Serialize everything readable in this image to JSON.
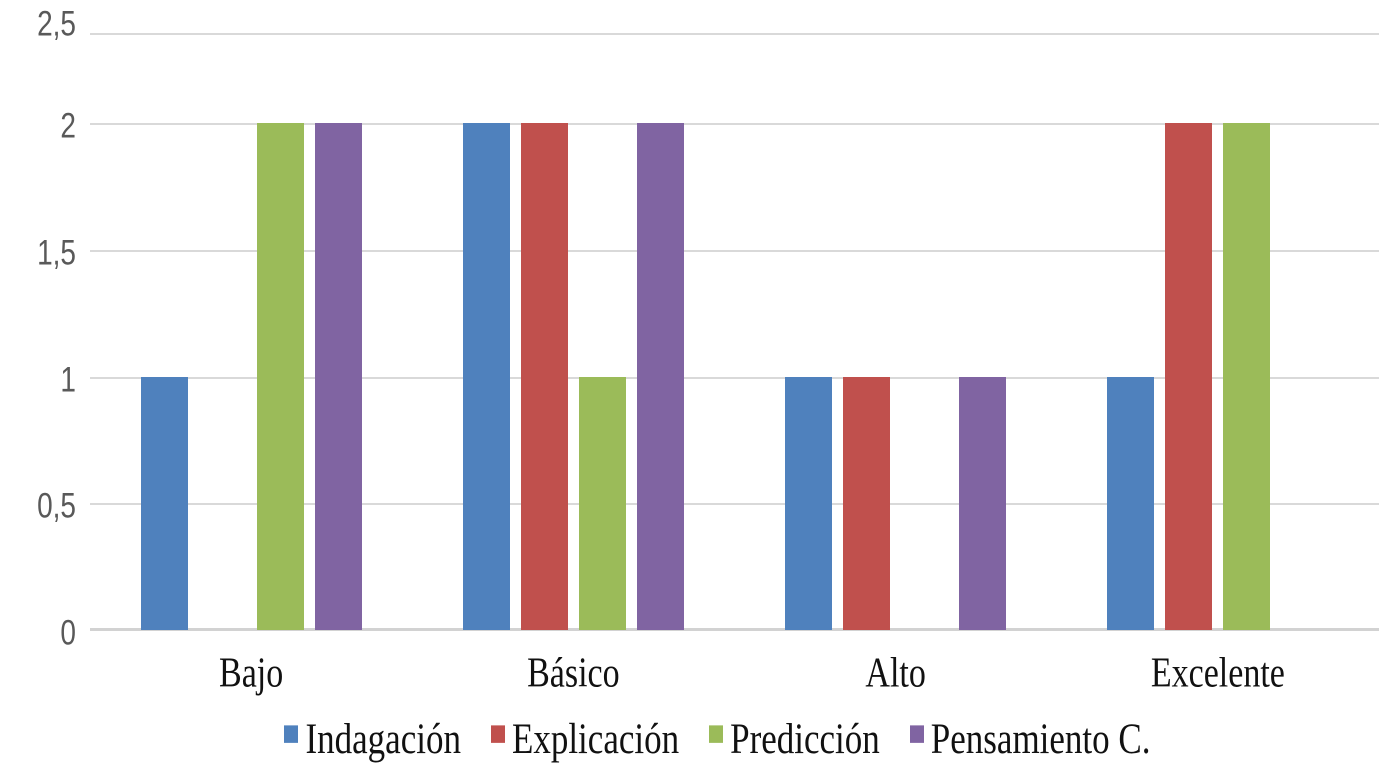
{
  "chart_data": {
    "type": "bar",
    "title": "",
    "categories": [
      "Bajo",
      "Básico",
      "Alto",
      "Excelente"
    ],
    "series": [
      {
        "name": "Indagación",
        "color": "#4F81BD",
        "values": [
          1,
          2,
          1,
          1
        ]
      },
      {
        "name": "Explicación",
        "color": "#C0504D",
        "values": [
          0,
          2,
          1,
          2
        ]
      },
      {
        "name": "Predicción",
        "color": "#9BBB59",
        "values": [
          2,
          1,
          0,
          2
        ]
      },
      {
        "name": "Pensamiento C.",
        "color": "#8064A2",
        "values": [
          2,
          2,
          1,
          0
        ]
      }
    ],
    "y_axis": {
      "min": 0,
      "max": 2.5,
      "decimal_separator": ",",
      "ticks": [
        {
          "value": 0,
          "label": "0"
        },
        {
          "value": 0.5,
          "label": "0,5"
        },
        {
          "value": 1,
          "label": "1"
        },
        {
          "value": 1.5,
          "label": "1,5"
        },
        {
          "value": 2,
          "label": "2"
        },
        {
          "value": 2.5,
          "label": "2,5"
        }
      ]
    },
    "xlabel": "",
    "ylabel": "",
    "legend_position": "bottom",
    "grid": true,
    "colors": {
      "background": "#FFFFFF",
      "gridline": "#D9D9D9",
      "axis_line": "#D2D2D2",
      "y_tick_text": "#595959",
      "category_text": "#111111",
      "legend_text": "#111111"
    }
  }
}
